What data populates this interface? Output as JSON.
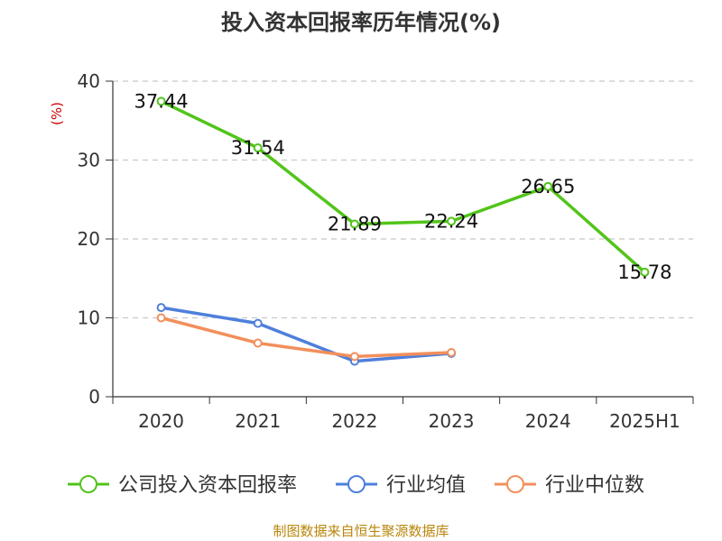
{
  "chart_data": {
    "type": "line",
    "title": "投入资本回报率历年情况(%)",
    "ylabel": "(%)",
    "categories": [
      "2020",
      "2021",
      "2022",
      "2023",
      "2024",
      "2025H1"
    ],
    "ylim": [
      0,
      40
    ],
    "yticks": [
      "0",
      "10",
      "20",
      "30",
      "40"
    ],
    "grid": true,
    "legend_position": "bottom",
    "series": [
      {
        "name": "公司投入资本回报率",
        "color": "#52c41a",
        "values": [
          37.44,
          31.54,
          21.89,
          22.24,
          26.65,
          15.78
        ],
        "labels": [
          "37.44",
          "31.54",
          "21.89",
          "22.24",
          "26.65",
          "15.78"
        ]
      },
      {
        "name": "行业均值",
        "color": "#4e7fdc",
        "values": [
          11.3,
          9.3,
          4.5,
          5.5,
          null,
          null
        ]
      },
      {
        "name": "行业中位数",
        "color": "#f28f5c",
        "values": [
          10.0,
          6.8,
          5.1,
          5.6,
          null,
          null
        ]
      }
    ]
  },
  "source": "制图数据来自恒生聚源数据库"
}
